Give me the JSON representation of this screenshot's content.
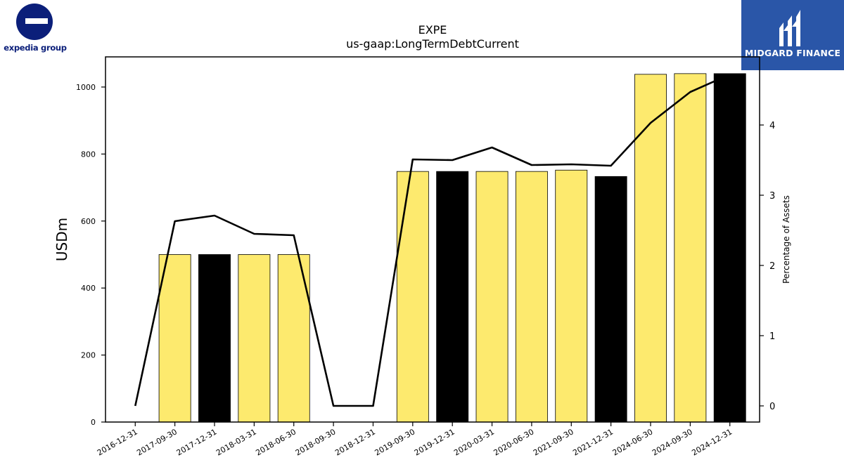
{
  "logos": {
    "left_text": "expedia group",
    "right_text": "MIDGARD FINANCE",
    "left_color": "#0b1f7a",
    "right_color": "#2a56a8"
  },
  "chart_data": {
    "type": "bar",
    "title": "EXPE",
    "subtitle": "us-gaap:LongTermDebtCurrent",
    "ylabel": "USDm",
    "y2label": "Percentage of Assets",
    "ylim": [
      0,
      1090
    ],
    "y2lim": [
      -0.23,
      4.97
    ],
    "yticks": [
      0,
      200,
      400,
      600,
      800,
      1000
    ],
    "y2ticks": [
      0,
      1,
      2,
      3,
      4
    ],
    "grid": false,
    "categories": [
      "2016-12-31",
      "2017-09-30",
      "2017-12-31",
      "2018-03-31",
      "2018-06-30",
      "2018-09-30",
      "2018-12-31",
      "2019-09-30",
      "2019-12-31",
      "2020-03-31",
      "2020-06-30",
      "2021-09-30",
      "2021-12-31",
      "2024-06-30",
      "2024-09-30",
      "2024-12-31"
    ],
    "series": [
      {
        "type": "bar",
        "axis": "left",
        "values": [
          0,
          500,
          500,
          500,
          500,
          0,
          0,
          748,
          748,
          748,
          748,
          752,
          733,
          1038,
          1040,
          1040
        ],
        "colors": [
          "#fdea6e",
          "#fdea6e",
          "#000000",
          "#fdea6e",
          "#fdea6e",
          "#fdea6e",
          "#fdea6e",
          "#fdea6e",
          "#000000",
          "#fdea6e",
          "#fdea6e",
          "#fdea6e",
          "#000000",
          "#fdea6e",
          "#fdea6e",
          "#000000"
        ]
      },
      {
        "type": "line",
        "axis": "right",
        "color": "#000000",
        "values": [
          0.0,
          2.63,
          2.71,
          2.45,
          2.43,
          0.0,
          0.0,
          3.51,
          3.5,
          3.68,
          3.43,
          3.44,
          3.42,
          4.03,
          4.47,
          4.72
        ]
      }
    ]
  }
}
